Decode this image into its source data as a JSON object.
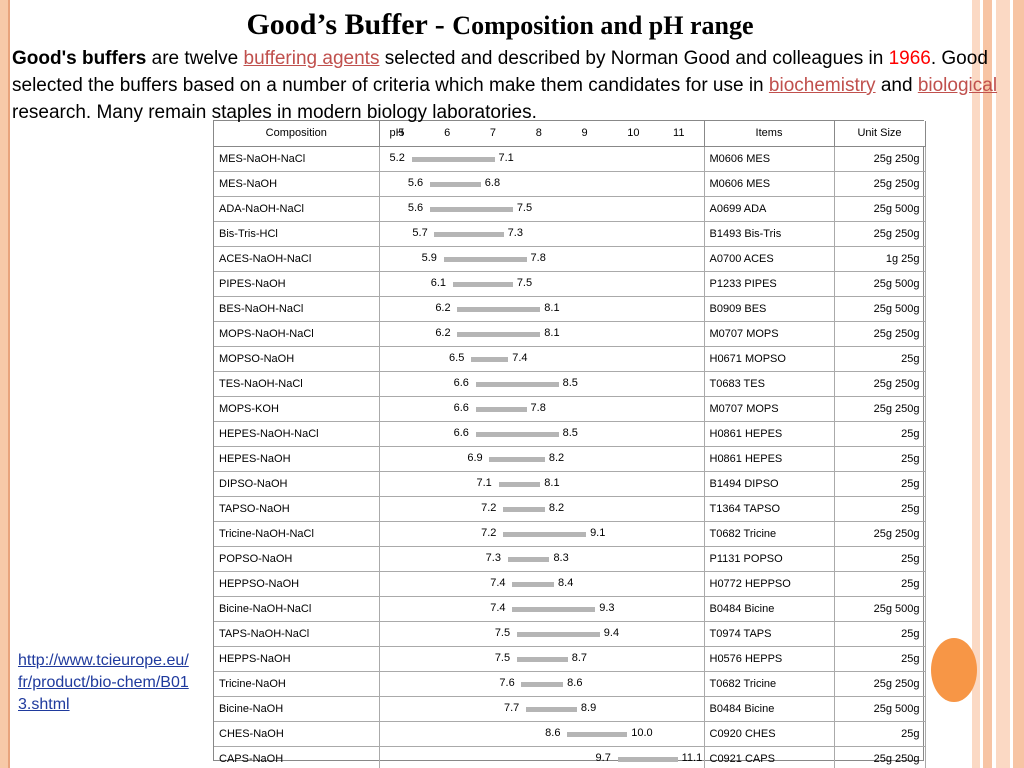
{
  "title": {
    "part1": "Good’s Buffer - ",
    "part2": "Composition and pH range"
  },
  "intro": {
    "bold": "Good's buffers",
    "t1": " are twelve ",
    "link1": "buffering agents",
    "t2": " selected and described by Norman Good and colleagues in ",
    "year": "1966",
    "t3": ". Good selected the buffers based on a number of criteria which make them candidates for use in ",
    "link2": "biochemistry",
    "t4": " and ",
    "link3": "biological",
    "t5": " research. Many remain staples in modern biology laboratories."
  },
  "table": {
    "headers": {
      "composition": "Composition",
      "ph": "pH",
      "items": "Items",
      "unit_size": "Unit Size"
    },
    "ph_scale": [
      "5",
      "6",
      "7",
      "8",
      "9",
      "10",
      "11"
    ],
    "rows": [
      {
        "composition": "MES-NaOH-NaCl",
        "lo": "5.2",
        "hi": "7.1",
        "item": "M0606 MES",
        "size": "25g  250g"
      },
      {
        "composition": "MES-NaOH",
        "lo": "5.6",
        "hi": "6.8",
        "item": "M0606 MES",
        "size": "25g  250g"
      },
      {
        "composition": "ADA-NaOH-NaCl",
        "lo": "5.6",
        "hi": "7.5",
        "item": "A0699 ADA",
        "size": "25g  500g"
      },
      {
        "composition": "Bis-Tris-HCl",
        "lo": "5.7",
        "hi": "7.3",
        "item": "B1493 Bis-Tris",
        "size": "25g  250g"
      },
      {
        "composition": "ACES-NaOH-NaCl",
        "lo": "5.9",
        "hi": "7.8",
        "item": "A0700 ACES",
        "size": "1g  25g"
      },
      {
        "composition": "PIPES-NaOH",
        "lo": "6.1",
        "hi": "7.5",
        "item": "P1233 PIPES",
        "size": "25g  500g"
      },
      {
        "composition": "BES-NaOH-NaCl",
        "lo": "6.2",
        "hi": "8.1",
        "item": "B0909 BES",
        "size": "25g  500g"
      },
      {
        "composition": "MOPS-NaOH-NaCl",
        "lo": "6.2",
        "hi": "8.1",
        "item": "M0707 MOPS",
        "size": "25g  250g"
      },
      {
        "composition": "MOPSO-NaOH",
        "lo": "6.5",
        "hi": "7.4",
        "item": "H0671 MOPSO",
        "size": "25g"
      },
      {
        "composition": "TES-NaOH-NaCl",
        "lo": "6.6",
        "hi": "8.5",
        "item": "T0683 TES",
        "size": "25g  250g"
      },
      {
        "composition": "MOPS-KOH",
        "lo": "6.6",
        "hi": "7.8",
        "item": "M0707 MOPS",
        "size": "25g  250g"
      },
      {
        "composition": "HEPES-NaOH-NaCl",
        "lo": "6.6",
        "hi": "8.5",
        "item": "H0861 HEPES",
        "size": "25g"
      },
      {
        "composition": "HEPES-NaOH",
        "lo": "6.9",
        "hi": "8.2",
        "item": "H0861 HEPES",
        "size": "25g"
      },
      {
        "composition": "DIPSO-NaOH",
        "lo": "7.1",
        "hi": "8.1",
        "item": "B1494 DIPSO",
        "size": "25g"
      },
      {
        "composition": "TAPSO-NaOH",
        "lo": "7.2",
        "hi": "8.2",
        "item": "T1364 TAPSO",
        "size": "25g"
      },
      {
        "composition": "Tricine-NaOH-NaCl",
        "lo": "7.2",
        "hi": "9.1",
        "item": "T0682 Tricine",
        "size": "25g  250g"
      },
      {
        "composition": "POPSO-NaOH",
        "lo": "7.3",
        "hi": "8.3",
        "item": "P1131 POPSO",
        "size": "25g"
      },
      {
        "composition": "HEPPSO-NaOH",
        "lo": "7.4",
        "hi": "8.4",
        "item": "H0772 HEPPSO",
        "size": "25g"
      },
      {
        "composition": "Bicine-NaOH-NaCl",
        "lo": "7.4",
        "hi": "9.3",
        "item": "B0484 Bicine",
        "size": "25g  500g"
      },
      {
        "composition": "TAPS-NaOH-NaCl",
        "lo": "7.5",
        "hi": "9.4",
        "item": "T0974 TAPS",
        "size": "25g"
      },
      {
        "composition": "HEPPS-NaOH",
        "lo": "7.5",
        "hi": "8.7",
        "item": "H0576 HEPPS",
        "size": "25g"
      },
      {
        "composition": "Tricine-NaOH",
        "lo": "7.6",
        "hi": "8.6",
        "item": "T0682 Tricine",
        "size": "25g  250g"
      },
      {
        "composition": "Bicine-NaOH",
        "lo": "7.7",
        "hi": "8.9",
        "item": "B0484 Bicine",
        "size": "25g  500g"
      },
      {
        "composition": "CHES-NaOH",
        "lo": "8.6",
        "hi": "10.0",
        "item": "C0920 CHES",
        "size": "25g"
      },
      {
        "composition": "CAPS-NaOH",
        "lo": "9.7",
        "hi": "11.1",
        "item": "C0921 CAPS",
        "size": "25g  250g"
      }
    ]
  },
  "source_link": "http://www.tcieurope.eu/fr/product/bio-chem/B013.shtml",
  "colors": {
    "accent": "#f79646",
    "link": "#c0504d",
    "year": "#ff0000",
    "bar": "#b5b5b5"
  }
}
